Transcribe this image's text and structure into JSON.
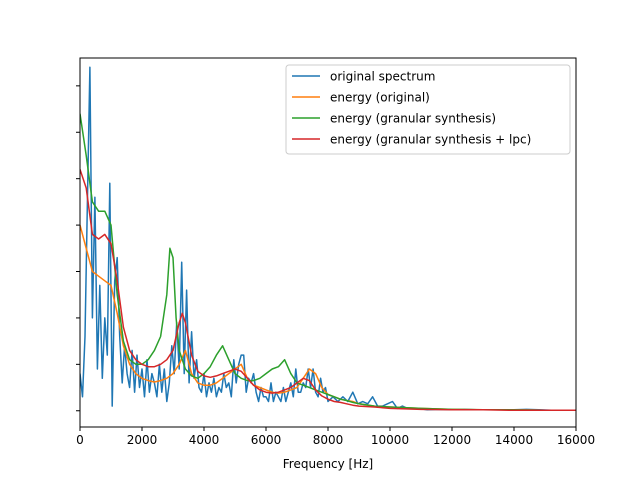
{
  "chart_data": {
    "type": "line",
    "title": "",
    "xlabel": "Frequency [Hz]",
    "ylabel": "",
    "xlim": [
      0,
      16000
    ],
    "ylim": [
      -0.35,
      7.6
    ],
    "x_ticks": [
      0,
      2000,
      4000,
      6000,
      8000,
      10000,
      12000,
      14000,
      16000
    ],
    "x_tick_labels": [
      "0",
      "2000",
      "4000",
      "6000",
      "8000",
      "10000",
      "12000",
      "14000",
      "16000"
    ],
    "y_ticks": [
      0,
      1,
      2,
      3,
      4,
      5,
      6,
      7
    ],
    "y_tick_labels_visible": false,
    "grid": false,
    "legend_location": "upper right",
    "series": [
      {
        "name": "original spectrum",
        "color": "#1f77b4",
        "x": [
          0,
          80,
          160,
          240,
          320,
          400,
          480,
          560,
          640,
          720,
          800,
          880,
          960,
          1040,
          1120,
          1200,
          1280,
          1360,
          1440,
          1520,
          1600,
          1680,
          1760,
          1840,
          1920,
          2000,
          2080,
          2160,
          2240,
          2320,
          2400,
          2480,
          2560,
          2640,
          2720,
          2800,
          2880,
          2960,
          3040,
          3120,
          3200,
          3280,
          3360,
          3440,
          3520,
          3600,
          3680,
          3760,
          3840,
          3920,
          4000,
          4080,
          4160,
          4240,
          4320,
          4400,
          4480,
          4560,
          4640,
          4720,
          4800,
          4880,
          4960,
          5040,
          5120,
          5200,
          5280,
          5360,
          5440,
          5520,
          5600,
          5680,
          5760,
          5840,
          5920,
          6000,
          6080,
          6160,
          6240,
          6320,
          6400,
          6480,
          6560,
          6640,
          6720,
          6800,
          6880,
          6960,
          7040,
          7120,
          7200,
          7280,
          7360,
          7440,
          7520,
          7600,
          7680,
          7760,
          7840,
          7920,
          8000,
          8160,
          8320,
          8480,
          8640,
          8800,
          8960,
          9120,
          9280,
          9440,
          9600,
          9760,
          9920,
          10080,
          10240,
          10400,
          10560,
          10720,
          10880,
          11200,
          11600,
          12000,
          12400,
          12800,
          13200,
          13600,
          14000,
          14400,
          14800,
          15200,
          15600,
          16000
        ],
        "y": [
          0.8,
          0.3,
          1.6,
          4.5,
          7.4,
          2.0,
          4.6,
          0.9,
          2.7,
          0.7,
          2.0,
          1.2,
          4.9,
          0.1,
          2.8,
          3.3,
          1.6,
          0.6,
          1.4,
          0.8,
          0.5,
          1.3,
          0.4,
          1.2,
          0.5,
          0.9,
          0.3,
          1.1,
          0.4,
          0.8,
          0.6,
          0.3,
          1.0,
          0.4,
          0.9,
          0.2,
          0.6,
          1.4,
          0.8,
          1.9,
          0.9,
          3.2,
          0.8,
          2.6,
          0.6,
          1.7,
          0.7,
          1.1,
          0.5,
          0.4,
          0.8,
          0.3,
          0.6,
          0.4,
          0.7,
          0.3,
          0.5,
          0.4,
          0.8,
          0.5,
          0.6,
          0.3,
          1.1,
          0.6,
          1.0,
          1.2,
          1.2,
          0.4,
          0.7,
          0.6,
          0.8,
          0.4,
          0.2,
          0.5,
          0.3,
          0.3,
          0.2,
          0.6,
          0.2,
          0.4,
          0.3,
          0.2,
          0.5,
          0.2,
          0.4,
          0.6,
          0.3,
          0.9,
          0.4,
          0.4,
          0.6,
          0.5,
          0.9,
          0.5,
          0.9,
          0.4,
          0.3,
          0.7,
          0.4,
          0.5,
          0.2,
          0.3,
          0.2,
          0.3,
          0.2,
          0.4,
          0.15,
          0.2,
          0.15,
          0.3,
          0.1,
          0.1,
          0.15,
          0.2,
          0.05,
          0.1,
          0.05,
          0.05,
          0.05,
          0.02,
          0.03,
          0.02,
          0.03,
          0.02,
          0.02,
          0.02,
          0.02,
          0.03,
          0.02,
          0.01,
          0.01,
          0.01
        ]
      },
      {
        "name": "energy (original)",
        "color": "#ff7f0e",
        "x": [
          0,
          200,
          400,
          600,
          800,
          1000,
          1200,
          1400,
          1600,
          1800,
          2000,
          2200,
          2400,
          2600,
          2800,
          3000,
          3200,
          3400,
          3600,
          3800,
          4000,
          4200,
          4400,
          4600,
          4800,
          5000,
          5200,
          5400,
          5600,
          5800,
          6000,
          6200,
          6400,
          6600,
          6800,
          7000,
          7200,
          7400,
          7600,
          7800,
          8000,
          8200,
          8400,
          8600,
          8800,
          9000,
          9500,
          10000,
          11000,
          12000,
          13000,
          14000,
          15000,
          16000
        ],
        "y": [
          4.0,
          3.5,
          3.0,
          2.9,
          2.8,
          2.7,
          2.1,
          1.4,
          1.0,
          0.8,
          0.7,
          0.65,
          0.62,
          0.65,
          0.7,
          0.8,
          1.0,
          1.3,
          0.8,
          0.6,
          0.55,
          0.55,
          0.6,
          0.7,
          0.8,
          0.9,
          1.0,
          0.7,
          0.55,
          0.5,
          0.45,
          0.4,
          0.38,
          0.4,
          0.45,
          0.5,
          0.7,
          0.9,
          0.8,
          0.5,
          0.35,
          0.3,
          0.25,
          0.22,
          0.2,
          0.15,
          0.1,
          0.08,
          0.05,
          0.03,
          0.02,
          0.02,
          0.01,
          0.01
        ]
      },
      {
        "name": "energy (granular synthesis)",
        "color": "#2ca02c",
        "x": [
          0,
          200,
          400,
          600,
          800,
          1000,
          1200,
          1400,
          1600,
          1800,
          2000,
          2200,
          2400,
          2600,
          2800,
          2900,
          3000,
          3100,
          3200,
          3400,
          3600,
          3800,
          4000,
          4200,
          4400,
          4600,
          4800,
          5000,
          5200,
          5400,
          5600,
          5800,
          6000,
          6200,
          6400,
          6600,
          6800,
          7000,
          7200,
          7400,
          7600,
          7800,
          8000,
          8200,
          8400,
          8600,
          8800,
          9000,
          9500,
          10000,
          11000,
          12000,
          13000,
          14000,
          15000,
          16000
        ],
        "y": [
          6.4,
          5.5,
          4.5,
          4.3,
          4.3,
          4.0,
          2.5,
          1.5,
          1.1,
          1.0,
          1.0,
          1.1,
          1.3,
          1.6,
          2.5,
          3.5,
          3.3,
          2.0,
          1.3,
          0.9,
          0.75,
          0.7,
          0.8,
          0.95,
          1.2,
          1.4,
          1.1,
          0.8,
          0.7,
          0.65,
          0.65,
          0.7,
          0.8,
          0.9,
          0.95,
          1.1,
          0.8,
          0.6,
          0.55,
          0.5,
          0.45,
          0.4,
          0.35,
          0.3,
          0.25,
          0.22,
          0.18,
          0.15,
          0.1,
          0.08,
          0.05,
          0.03,
          0.02,
          0.02,
          0.01,
          0.01
        ]
      },
      {
        "name": "energy (granular synthesis + lpc)",
        "color": "#d62728",
        "x": [
          0,
          200,
          400,
          600,
          800,
          1000,
          1200,
          1400,
          1600,
          1800,
          2000,
          2200,
          2400,
          2600,
          2800,
          3000,
          3200,
          3300,
          3400,
          3600,
          3800,
          4000,
          4200,
          4400,
          4600,
          4800,
          5000,
          5200,
          5400,
          5600,
          5800,
          6000,
          6200,
          6400,
          6600,
          6800,
          7000,
          7200,
          7400,
          7600,
          7800,
          8000,
          8200,
          8400,
          8600,
          8800,
          9000,
          9500,
          10000,
          11000,
          12000,
          13000,
          14000,
          15000,
          16000
        ],
        "y": [
          5.2,
          4.8,
          3.8,
          3.7,
          3.8,
          3.6,
          2.8,
          1.8,
          1.3,
          1.1,
          1.0,
          0.95,
          0.95,
          1.0,
          1.1,
          1.3,
          1.9,
          2.1,
          1.9,
          1.2,
          0.85,
          0.75,
          0.72,
          0.75,
          0.8,
          0.85,
          0.9,
          0.85,
          0.7,
          0.55,
          0.45,
          0.4,
          0.38,
          0.4,
          0.45,
          0.5,
          0.6,
          0.7,
          0.65,
          0.45,
          0.32,
          0.25,
          0.2,
          0.18,
          0.15,
          0.12,
          0.1,
          0.08,
          0.05,
          0.03,
          0.02,
          0.02,
          0.01,
          0.01,
          0.01
        ]
      }
    ]
  }
}
